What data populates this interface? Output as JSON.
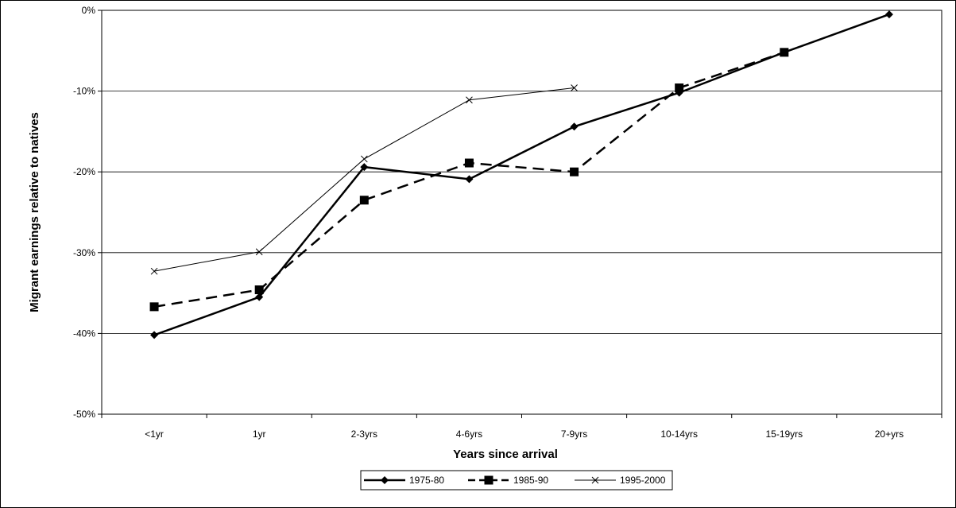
{
  "chart_data": {
    "type": "line",
    "xlabel": "Years since arrival",
    "ylabel": "Migrant earnings relative to natives",
    "categories": [
      "<1yr",
      "1yr",
      "2-3yrs",
      "4-6yrs",
      "7-9yrs",
      "10-14yrs",
      "15-19yrs",
      "20+yrs"
    ],
    "ylim": [
      -50,
      0
    ],
    "yticks": [
      0,
      -10,
      -20,
      -30,
      -40,
      -50
    ],
    "ytick_labels": [
      "0%",
      "-10%",
      "-20%",
      "-30%",
      "-40%",
      "-50%"
    ],
    "grid": "horizontal",
    "legend_position": "bottom",
    "series": [
      {
        "name": "1975-80",
        "marker": "diamond",
        "line": "solid-thick",
        "values": [
          -40.2,
          -35.5,
          -19.4,
          -20.9,
          -14.4,
          -10.2,
          -5.2,
          -0.5
        ]
      },
      {
        "name": "1985-90",
        "marker": "square",
        "line": "dashed-thick",
        "values": [
          -36.7,
          -34.6,
          -23.5,
          -18.9,
          -20.0,
          -9.6,
          -5.2,
          null
        ]
      },
      {
        "name": "1995-2000",
        "marker": "x",
        "line": "solid-thin",
        "values": [
          -32.3,
          -29.9,
          -18.4,
          -11.1,
          -9.6,
          null,
          null,
          null
        ]
      }
    ]
  }
}
